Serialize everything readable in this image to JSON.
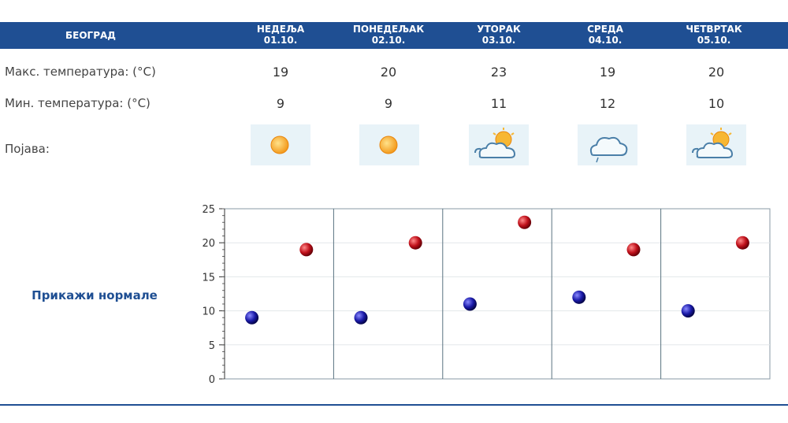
{
  "header": {
    "city": "БЕОГРАД",
    "days": [
      {
        "name": "НЕДЕЉА",
        "date": "01.10."
      },
      {
        "name": "ПОНЕДЕЉАК",
        "date": "02.10."
      },
      {
        "name": "УТОРАК",
        "date": "03.10."
      },
      {
        "name": "СРЕДА",
        "date": "04.10."
      },
      {
        "name": "ЧЕТВРТАК",
        "date": "05.10."
      }
    ]
  },
  "rows": {
    "max_label": "Макс. температура: (°C)",
    "min_label": "Мин. температура: (°C)",
    "phenomenon_label": "Појава:",
    "max_values": [
      "19",
      "20",
      "23",
      "19",
      "20"
    ],
    "min_values": [
      "9",
      "9",
      "11",
      "12",
      "10"
    ],
    "icons": [
      "sun-icon",
      "sun-icon",
      "sun-cloud-icon",
      "cloud-rain-icon",
      "sun-cloud-icon"
    ]
  },
  "normals_link": "Прикажи нормале",
  "colors": {
    "header_bg": "#1f4f93",
    "max_point": "#c0111b",
    "min_point": "#1a1aa8",
    "icon_bg": "#e8f3f8"
  },
  "chart_data": {
    "type": "scatter",
    "categories": [
      "01.10.",
      "02.10.",
      "03.10.",
      "04.10.",
      "05.10."
    ],
    "ylim": [
      0,
      25
    ],
    "yticks": [
      "0",
      "5",
      "10",
      "15",
      "20",
      "25"
    ],
    "grid": true,
    "series": [
      {
        "values": [
          9,
          9,
          11,
          12,
          10
        ]
      },
      {
        "values": [
          19,
          20,
          23,
          19,
          20
        ]
      }
    ]
  }
}
